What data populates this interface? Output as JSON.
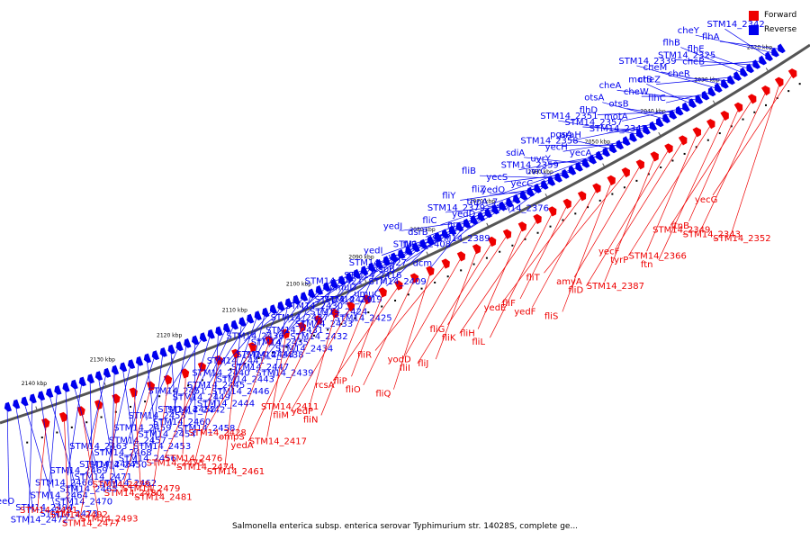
{
  "caption": "Salmonella enterica subsp. enterica serovar Typhimurium str. 14028S, complete ge...",
  "legend": {
    "forward": {
      "label": "Forward",
      "color": "#ee0000"
    },
    "reverse": {
      "label": "Reverse",
      "color": "#0000ee"
    }
  },
  "colors": {
    "backbone": "#555555",
    "forward_leader": "#ee0000",
    "reverse_leader": "#0000ee"
  },
  "axis_ticks": [
    "2020 kbp",
    "2030 kbp",
    "2040 kbp",
    "2050 kbp",
    "2060 kbp",
    "2070 kbp",
    "2080 kbp",
    "2090 kbp",
    "2100 kbp",
    "2110 kbp",
    "2120 kbp",
    "2130 kbp",
    "2140 kbp"
  ],
  "reverse_genes": [
    "yeeO",
    "STM14_2494",
    "STM14_2473",
    "STM14_2472",
    "STM14_2466",
    "STM14_2465",
    "STM14_2464",
    "STM14_2470",
    "STM14_2467",
    "STM14_2469",
    "STM14_2471",
    "STM14_2462",
    "STM14_2463",
    "STM14_2468",
    "STM14_2456",
    "STM14_2450",
    "STM14_2459",
    "STM14_2454",
    "STM14_2457",
    "STM14_2453",
    "STM14_2452",
    "STM14_2455",
    "STM14_2460",
    "STM14_2458",
    "STM14_2451",
    "STM14_2449",
    "STM14_2444",
    "STM14_2442",
    "STM14_2440",
    "STM14_2443",
    "STM14_2445",
    "STM14_2446",
    "STM14_2448",
    "STM14_2441",
    "STM14_2447",
    "STM14_2439",
    "STM14_2436",
    "STM14_2435",
    "STM14_2434",
    "STM14_2438",
    "STM14_2437",
    "STM14_2433",
    "STM14_2431",
    "STM14_2432",
    "STM14_2429",
    "STM14_2430",
    "STM14_2424",
    "STM14_2425",
    "STM14_2421",
    "umuD",
    "umuC",
    "STM14_2419",
    "STM14_2427",
    "cspB",
    "STM14_2416",
    "STM14_2409",
    "STM14_2408",
    "yedI",
    "vsr",
    "dcm",
    "yedJ",
    "dsrB",
    "STM14_2389",
    "fliE",
    "STM14_2379",
    "yedD",
    "fliC",
    "fliA",
    "fliZ",
    "fliY",
    "tnpA_7",
    "STM14_2376",
    "fliB",
    "yecS",
    "yecC",
    "yedO",
    "sdiA",
    "uvrY",
    "STM14_2359",
    "uvrC",
    "pgsA",
    "STM14_2358",
    "yecH",
    "yecA",
    "STM14_2351",
    "STM14_2357",
    "STM14_2347",
    "araH",
    "otsA",
    "otsB",
    "flhD",
    "motA",
    "motB",
    "cheA",
    "cheW",
    "flhC",
    "STM14_2339",
    "cheM",
    "cheR",
    "cheZ",
    "flhB",
    "flhE",
    "STM14_2325",
    "cheB",
    "STM14_2342",
    "cheY",
    "flhA"
  ],
  "forward_genes": [
    "STM14_2491",
    "STM14_2492",
    "STM14_2493",
    "STM14_2477",
    "STM14_2478",
    "STM14_2479",
    "STM14_2480",
    "STM14_2481",
    "STM14_2476",
    "STM14_2475",
    "STM14_2474",
    "STM14_2461",
    "STM14_2428",
    "ompS",
    "STM14_2417",
    "yedA",
    "STM14_2411",
    "yedP",
    "fliM",
    "fliN",
    "fliP",
    "rcsA",
    "fliO",
    "fliQ",
    "fliR",
    "yodD",
    "fliJ",
    "fliI",
    "fliG",
    "fliH",
    "fliK",
    "fliL",
    "fliF",
    "yedE",
    "yedF",
    "fliS",
    "fliT",
    "amyA",
    "STM14_2387",
    "fliD",
    "yecF",
    "STM14_2366",
    "tyrP",
    "ftn",
    "ftnB",
    "STM14_2349",
    "STM14_2343",
    "STM14_2352",
    "yecG"
  ]
}
